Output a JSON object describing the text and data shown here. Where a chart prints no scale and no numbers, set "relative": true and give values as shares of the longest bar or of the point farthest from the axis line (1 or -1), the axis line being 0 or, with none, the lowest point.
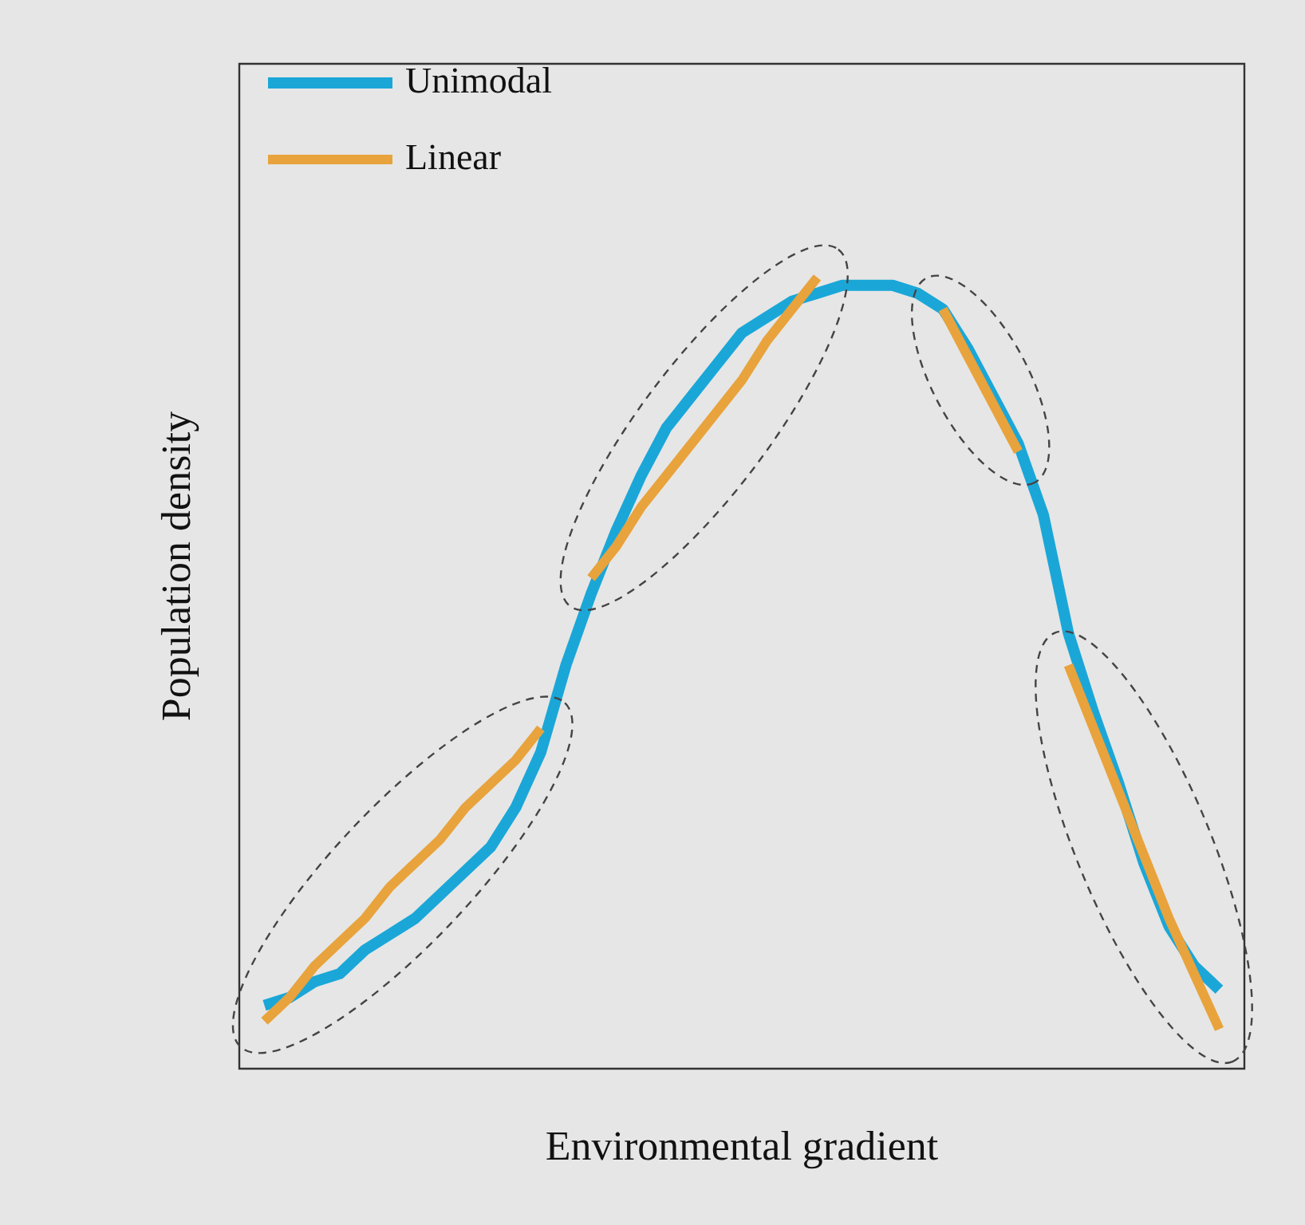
{
  "chart_data": {
    "type": "line",
    "relative": true,
    "xlabel": "Environmental gradient",
    "ylabel": "Population density",
    "legend": "top left",
    "marker": "none",
    "line_style": "solid",
    "categories": [
      null,
      null,
      null,
      null,
      null,
      null,
      null,
      null,
      null,
      null,
      null,
      null,
      null,
      null,
      null,
      null,
      null,
      null,
      null,
      null,
      null,
      null,
      null,
      null,
      null,
      null,
      null,
      null,
      null,
      null,
      null,
      null,
      null,
      null,
      null,
      null,
      null,
      null,
      null,
      null,
      null
    ],
    "series": [
      {
        "name": "Unimodal",
        "color": "#1aa7d8",
        "values": [
          null,
          0.08,
          0.09,
          0.11,
          0.12,
          0.15,
          0.17,
          0.19,
          0.22,
          0.25,
          0.28,
          0.33,
          0.4,
          0.51,
          0.6,
          0.68,
          0.75,
          0.81,
          0.85,
          0.89,
          0.93,
          0.95,
          0.97,
          0.98,
          0.99,
          0.99,
          0.99,
          0.98,
          0.96,
          0.91,
          0.85,
          0.79,
          0.7,
          0.55,
          0.45,
          0.36,
          0.26,
          0.18,
          0.13,
          0.1,
          null
        ]
      },
      {
        "name": "Linear",
        "color": "#e8a33c",
        "values": [
          null,
          0.06,
          0.09,
          0.13,
          0.16,
          0.19,
          0.23,
          0.26,
          0.29,
          0.33,
          0.36,
          0.39,
          0.43,
          null,
          0.62,
          0.66,
          0.71,
          0.75,
          0.79,
          0.83,
          0.87,
          0.92,
          0.96,
          1.0,
          null,
          null,
          null,
          null,
          0.96,
          0.9,
          0.84,
          0.78,
          null,
          0.51,
          0.43,
          0.35,
          0.27,
          0.19,
          0.12,
          0.05,
          null
        ]
      }
    ]
  }
}
